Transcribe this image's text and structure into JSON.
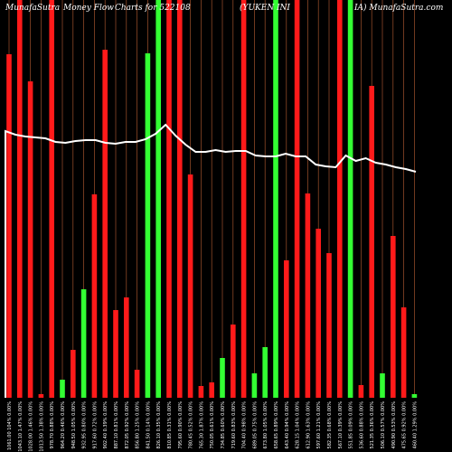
{
  "title_parts": [
    "MunafaSutra",
    "Money Flow",
    "Charts for 522108",
    "(YUKEN",
    "INI",
    "IA) MunafaSutra.com"
  ],
  "colors": {
    "up": "#33ff33",
    "down": "#ff1a1a",
    "line": "#ffffff",
    "grid": "#a0522d",
    "background": "#000000"
  },
  "chart_data": {
    "type": "bar",
    "title": "MunafaSutra Money Flow Charts for 522108 (YUKEN INDIA) MunafaSutra.com",
    "ylim": [
      0,
      440
    ],
    "bars": [
      {
        "label": "1061.00 104% 0.00%",
        "value": 380,
        "color": "red"
      },
      {
        "label": "1043.10 1.47% 0.00%",
        "value": 440,
        "color": "red"
      },
      {
        "label": "1028.00 1.46% 0.00%",
        "value": 350,
        "color": "red"
      },
      {
        "label": "1013.50 1.38% 0.00%",
        "value": 4,
        "color": "red"
      },
      {
        "label": "978.70 0.88% 0.00%",
        "value": 440,
        "color": "red"
      },
      {
        "label": "964.20 0.46% 0.00%",
        "value": 20,
        "color": "green"
      },
      {
        "label": "948.50 1.05% 0.00%",
        "value": 53,
        "color": "red"
      },
      {
        "label": "932.95 0.80% 0.00%",
        "value": 120,
        "color": "green"
      },
      {
        "label": "917.60 0.72% 0.00%",
        "value": 225,
        "color": "red"
      },
      {
        "label": "902.40 0.39% 0.00%",
        "value": 385,
        "color": "red"
      },
      {
        "label": "887.10 0.81% 0.00%",
        "value": 97,
        "color": "red"
      },
      {
        "label": "872.05 0.92% 0.00%",
        "value": 111,
        "color": "red"
      },
      {
        "label": "856.80 1.25% 0.00%",
        "value": 31,
        "color": "red"
      },
      {
        "label": "841.50 0.14% 0.00%",
        "value": 381,
        "color": "green"
      },
      {
        "label": "826.10 0.35% 0.00%",
        "value": 440,
        "color": "green"
      },
      {
        "label": "810.85 0.31% 0.00%",
        "value": 440,
        "color": "red"
      },
      {
        "label": "795.60 0.90% 0.00%",
        "value": 440,
        "color": "red"
      },
      {
        "label": "780.45 0.52% 0.00%",
        "value": 247,
        "color": "red"
      },
      {
        "label": "765.30 1.87% 0.00%",
        "value": 13,
        "color": "red"
      },
      {
        "label": "750.05 0.61% 0.00%",
        "value": 17,
        "color": "red"
      },
      {
        "label": "734.85 0.60% 0.00%",
        "value": 44,
        "color": "green"
      },
      {
        "label": "719.60 0.83% 0.00%",
        "value": 81,
        "color": "red"
      },
      {
        "label": "704.40 0.98% 0.00%",
        "value": 440,
        "color": "red"
      },
      {
        "label": "689.05 0.75% 0.00%",
        "value": 27,
        "color": "green"
      },
      {
        "label": "673.80 1.05% 0.00%",
        "value": 56,
        "color": "green"
      },
      {
        "label": "658.65 0.89% 0.00%",
        "value": 440,
        "color": "green"
      },
      {
        "label": "643.40 0.94% 0.00%",
        "value": 152,
        "color": "red"
      },
      {
        "label": "628.15 1.04% 0.00%",
        "value": 440,
        "color": "red"
      },
      {
        "label": "612.90 1.63% 0.00%",
        "value": 226,
        "color": "red"
      },
      {
        "label": "597.60 1.21% 0.00%",
        "value": 187,
        "color": "red"
      },
      {
        "label": "582.35 0.68% 0.00%",
        "value": 160,
        "color": "red"
      },
      {
        "label": "567.10 0.39% 0.00%",
        "value": 440,
        "color": "red"
      },
      {
        "label": "551.85 0.09% 0.00%",
        "value": 440,
        "color": "green"
      },
      {
        "label": "536.60 0.88% 0.00%",
        "value": 14,
        "color": "red"
      },
      {
        "label": "521.35 0.36% 0.00%",
        "value": 345,
        "color": "red"
      },
      {
        "label": "506.10 0.57% 0.00%",
        "value": 27,
        "color": "green"
      },
      {
        "label": "490.90 0.53% 0.00%",
        "value": 179,
        "color": "red"
      },
      {
        "label": "475.65 0.92% 0.00%",
        "value": 100,
        "color": "red"
      },
      {
        "label": "460.40 1.29% 0.00%",
        "value": 4,
        "color": "green"
      }
    ],
    "line": [
      295,
      291,
      289,
      288,
      287,
      283,
      282,
      284,
      285,
      285,
      282,
      281,
      283,
      283,
      286,
      292,
      302,
      290,
      280,
      272,
      272,
      274,
      272,
      273,
      273,
      268,
      267,
      267,
      270,
      267,
      267,
      258,
      256,
      255,
      268,
      262,
      265,
      260,
      258,
      255,
      253,
      250
    ]
  }
}
